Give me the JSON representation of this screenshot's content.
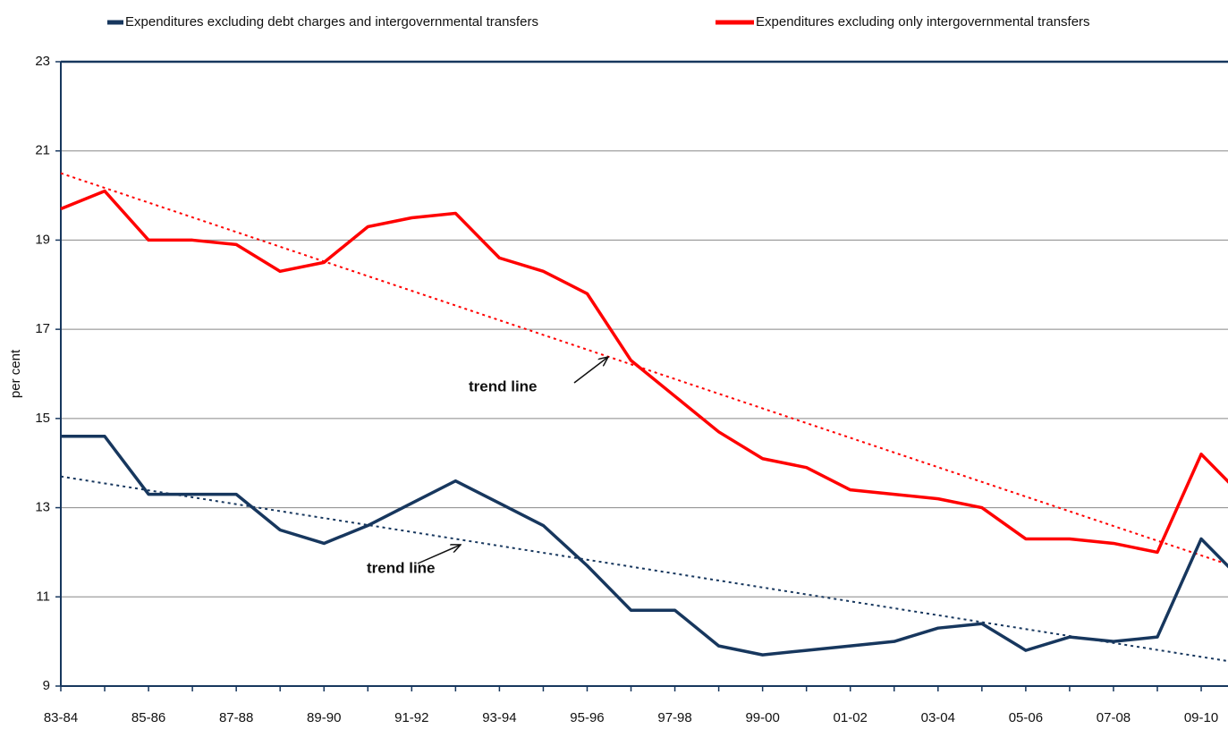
{
  "chart_data": {
    "type": "line",
    "y_label": "per cent",
    "categories": [
      "83-84",
      null,
      "85-86",
      null,
      "87-88",
      null,
      "89-90",
      null,
      "91-92",
      null,
      "93-94",
      null,
      "95-96",
      null,
      "97-98",
      null,
      "99-00",
      null,
      "01-02",
      null,
      "03-04",
      null,
      "05-06",
      null,
      "07-08",
      null,
      "09-10",
      null
    ],
    "series": [
      {
        "name": "Expenditures excluding debt charges and intergovernmental transfers",
        "color": "#17375e",
        "values": [
          14.6,
          14.6,
          13.3,
          13.3,
          13.3,
          12.5,
          12.2,
          12.6,
          13.1,
          13.6,
          13.1,
          12.6,
          11.7,
          10.7,
          10.7,
          9.9,
          9.7,
          9.8,
          9.9,
          10.0,
          10.3,
          10.4,
          9.8,
          10.1,
          10.0,
          10.1,
          12.3,
          11.3
        ]
      },
      {
        "name": "Expenditures excluding only intergovernmental transfers",
        "color": "#ff0000",
        "values": [
          19.7,
          20.1,
          19.0,
          19.0,
          18.9,
          18.3,
          18.5,
          19.3,
          19.5,
          19.6,
          18.6,
          18.3,
          17.8,
          16.3,
          15.5,
          14.7,
          14.1,
          13.9,
          13.4,
          13.3,
          13.2,
          13.0,
          12.3,
          12.3,
          12.2,
          12.0,
          14.2,
          13.2
        ]
      }
    ],
    "trend_lines": [
      {
        "color": "#17375e",
        "values": [
          13.7,
          9.5
        ]
      },
      {
        "color": "#ff0000",
        "values": [
          20.5,
          11.6
        ]
      }
    ],
    "annotations": [
      "trend line",
      "trend line"
    ],
    "ylim": [
      9,
      23
    ],
    "yticks": [
      9,
      11,
      13,
      15,
      17,
      19,
      21,
      23
    ],
    "grid": true
  }
}
